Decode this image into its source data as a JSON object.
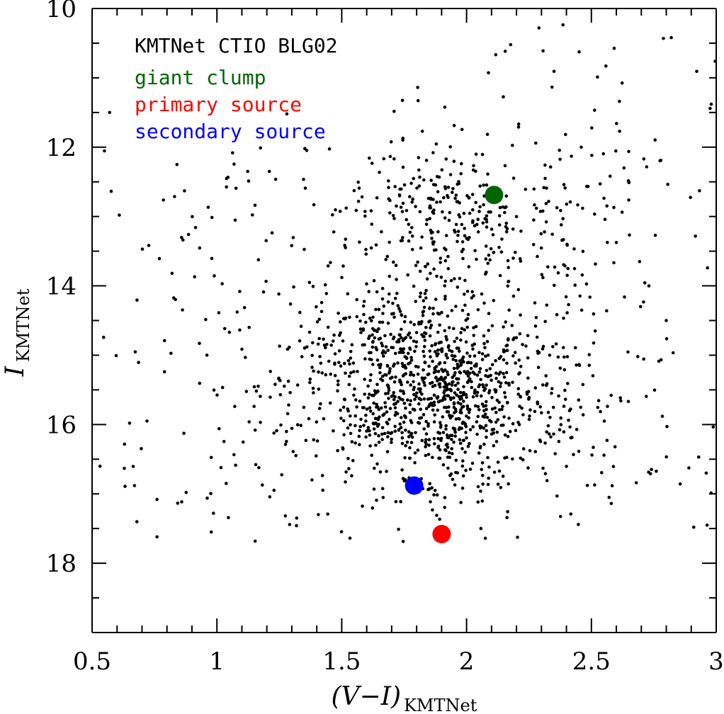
{
  "chart_data": {
    "type": "scatter",
    "title": "KMTNet CTIO BLG02",
    "xlabel": "(V−I)",
    "xlabel_sub": "KMTNet",
    "ylabel": "I",
    "ylabel_sub": "KMTNet",
    "xlim": [
      0.5,
      3.0
    ],
    "ylim": [
      19.0,
      10.0
    ],
    "y_inverted": true,
    "x_ticks": [
      {
        "value": 0.5,
        "label": "0.5"
      },
      {
        "value": 1.0,
        "label": "1"
      },
      {
        "value": 1.5,
        "label": "1.5"
      },
      {
        "value": 2.0,
        "label": "2"
      },
      {
        "value": 2.5,
        "label": "2.5"
      },
      {
        "value": 3.0,
        "label": "3"
      }
    ],
    "y_ticks": [
      {
        "value": 10,
        "label": "10"
      },
      {
        "value": 12,
        "label": "12"
      },
      {
        "value": 14,
        "label": "14"
      },
      {
        "value": 16,
        "label": "16"
      },
      {
        "value": 18,
        "label": "18"
      }
    ],
    "grid": false,
    "legend": {
      "position": "top-left",
      "entries": [
        {
          "label": "giant clump",
          "color": "#006400"
        },
        {
          "label": "primary source",
          "color": "#ff0000"
        },
        {
          "label": "secondary source",
          "color": "#0000ff"
        }
      ]
    },
    "special_points": [
      {
        "name": "giant clump",
        "x": 2.11,
        "y": 12.69,
        "color": "#006400"
      },
      {
        "name": "primary source",
        "x": 1.9,
        "y": 17.58,
        "color": "#ff0000"
      },
      {
        "name": "secondary source",
        "x": 1.79,
        "y": 16.88,
        "color": "#0000ff"
      }
    ],
    "stars": {
      "description": "Field star color-magnitude points, ~1700 stars",
      "bulge_center": {
        "x": 1.85,
        "y": 15.5,
        "sx": 0.24,
        "sy": 0.75
      },
      "upper_rgb": {
        "x": 1.95,
        "y": 13.0,
        "sx": 0.22,
        "sy": 0.55
      },
      "sparse_blue": {
        "x": 1.1,
        "y": 15.0,
        "sx": 0.3,
        "sy": 1.8
      },
      "sparse_red": {
        "x": 2.6,
        "y": 15.5,
        "sx": 0.3,
        "sy": 2.0
      },
      "sample_points": [
        [
          0.57,
          11.5
        ],
        [
          0.65,
          15.98
        ],
        [
          0.72,
          15.95
        ],
        [
          0.67,
          16.88
        ],
        [
          0.76,
          17.08
        ],
        [
          0.76,
          17.62
        ],
        [
          0.79,
          14.79
        ],
        [
          0.79,
          15.24
        ],
        [
          0.84,
          12.25
        ],
        [
          0.87,
          12.63
        ],
        [
          0.93,
          14.83
        ],
        [
          0.96,
          15.0
        ],
        [
          1.05,
          14.67
        ],
        [
          1.21,
          12.35
        ],
        [
          1.28,
          11.52
        ],
        [
          1.63,
          15.99
        ],
        [
          2.29,
          10.28
        ],
        [
          2.82,
          10.42
        ],
        [
          2.98,
          11.38
        ],
        [
          2.71,
          12.17
        ],
        [
          2.59,
          12.87
        ],
        [
          2.8,
          14.5
        ],
        [
          2.93,
          16.47
        ],
        [
          2.96,
          16.7
        ]
      ]
    }
  }
}
